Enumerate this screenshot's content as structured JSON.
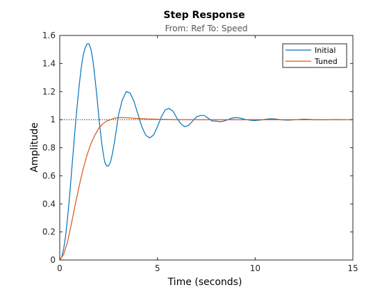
{
  "chart_data": {
    "type": "line",
    "title": "Step Response",
    "subtitle": "From: Ref  To: Speed",
    "xlabel": "Time (seconds)",
    "ylabel": "Amplitude",
    "xlim": [
      0,
      15
    ],
    "ylim": [
      0,
      1.6
    ],
    "xticks": [
      0,
      5,
      10,
      15
    ],
    "yticks": [
      0,
      0.2,
      0.4,
      0.6,
      0.8,
      1,
      1.2,
      1.4,
      1.6
    ],
    "xtick_labels": [
      "0",
      "5",
      "10",
      "15"
    ],
    "ytick_labels": [
      "0",
      "0.2",
      "0.4",
      "0.6",
      "0.8",
      "1",
      "1.2",
      "1.4",
      "1.6"
    ],
    "grid": false,
    "legend_position": "top-right",
    "reference_line": {
      "y": 1,
      "style": "dotted",
      "color": "#000000"
    },
    "series": [
      {
        "name": "Initial",
        "color": "#0072bd",
        "x": [
          0,
          0.1,
          0.2,
          0.3,
          0.4,
          0.5,
          0.6,
          0.7,
          0.8,
          0.9,
          1.0,
          1.1,
          1.2,
          1.3,
          1.4,
          1.5,
          1.6,
          1.7,
          1.8,
          1.9,
          2.0,
          2.1,
          2.2,
          2.3,
          2.4,
          2.5,
          2.6,
          2.7,
          2.8,
          2.9,
          3.0,
          3.2,
          3.4,
          3.6,
          3.8,
          4.0,
          4.2,
          4.4,
          4.6,
          4.8,
          5.0,
          5.2,
          5.4,
          5.6,
          5.8,
          6.0,
          6.2,
          6.4,
          6.6,
          6.8,
          7.0,
          7.2,
          7.4,
          7.6,
          7.8,
          8.0,
          8.2,
          8.4,
          8.6,
          8.8,
          9.0,
          9.2,
          9.4,
          9.6,
          9.8,
          10.0,
          10.2,
          10.4,
          10.6,
          10.8,
          11.0,
          11.2,
          11.4,
          11.6,
          11.8,
          12.0,
          12.2,
          12.4,
          12.6,
          12.8,
          13.0,
          13.2,
          13.4,
          13.6,
          13.8,
          14.0,
          14.2,
          14.4,
          14.6
        ],
        "y": [
          0,
          0.02,
          0.08,
          0.17,
          0.3,
          0.45,
          0.62,
          0.79,
          0.96,
          1.11,
          1.25,
          1.37,
          1.46,
          1.51,
          1.54,
          1.54,
          1.5,
          1.42,
          1.3,
          1.17,
          1.02,
          0.89,
          0.78,
          0.7,
          0.67,
          0.67,
          0.7,
          0.76,
          0.84,
          0.93,
          1.03,
          1.14,
          1.2,
          1.19,
          1.13,
          1.04,
          0.95,
          0.89,
          0.87,
          0.89,
          0.95,
          1.02,
          1.07,
          1.08,
          1.06,
          1.01,
          0.97,
          0.95,
          0.96,
          0.99,
          1.02,
          1.03,
          1.03,
          1.01,
          0.99,
          0.99,
          0.985,
          0.99,
          1.0,
          1.01,
          1.015,
          1.012,
          1.005,
          0.999,
          0.995,
          0.994,
          0.996,
          1.0,
          1.004,
          1.006,
          1.005,
          1.002,
          0.998,
          0.997,
          0.997,
          0.999,
          1.001,
          1.003,
          1.003,
          1.002,
          1.0,
          0.999,
          0.999,
          0.999,
          1.0,
          1.001,
          1.001,
          1.0,
          1.0
        ]
      },
      {
        "name": "Tuned",
        "color": "#d95319",
        "x": [
          0,
          0.2,
          0.4,
          0.6,
          0.8,
          1.0,
          1.2,
          1.4,
          1.6,
          1.8,
          2.0,
          2.2,
          2.4,
          2.6,
          2.8,
          3.0,
          3.2,
          3.4,
          3.6,
          3.8,
          4.0,
          4.5,
          5.0,
          5.5,
          6.0,
          7.0,
          8.0,
          9.0,
          10.0,
          11.0,
          12.0,
          13.0,
          14.0,
          15.0
        ],
        "y": [
          0,
          0.04,
          0.13,
          0.26,
          0.4,
          0.53,
          0.65,
          0.75,
          0.83,
          0.89,
          0.94,
          0.97,
          0.99,
          1.0,
          1.01,
          1.015,
          1.015,
          1.014,
          1.012,
          1.01,
          1.008,
          1.005,
          1.003,
          1.002,
          1.0,
          1.0,
          1.0,
          1.0,
          1.0,
          1.0,
          1.0,
          1.0,
          1.0,
          1.0
        ]
      }
    ]
  }
}
